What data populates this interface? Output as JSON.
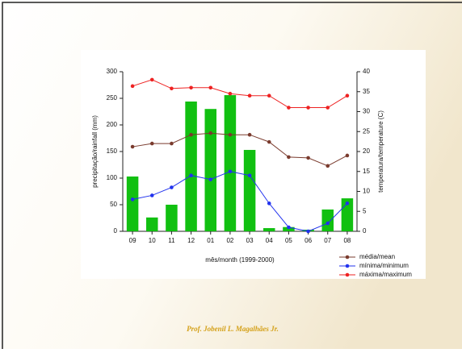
{
  "chart_data": {
    "type": "bar",
    "categories": [
      "09",
      "10",
      "11",
      "12",
      "01",
      "02",
      "03",
      "04",
      "05",
      "06",
      "07",
      "08"
    ],
    "x_label": "mês/month (1999-2000)",
    "y_label": "precipitação/rainfall (mm)",
    "y2_label": "temperatura/temperature (C)",
    "ylim": [
      0,
      300
    ],
    "yticks": [
      0,
      50,
      100,
      150,
      200,
      250,
      300
    ],
    "y2lim": [
      0,
      40
    ],
    "y2ticks": [
      0,
      5,
      10,
      15,
      20,
      25,
      30,
      35,
      40
    ],
    "series": [
      {
        "name": "precipitação",
        "type": "bar",
        "color": "#11c011",
        "values": [
          103,
          26,
          50,
          244,
          230,
          256,
          153,
          6,
          8,
          3,
          41,
          62
        ]
      },
      {
        "name": "média/mean",
        "type": "line",
        "axis": "y2",
        "color": "#7a3b2e",
        "values": [
          21.2,
          22,
          22,
          24.2,
          24.6,
          24.2,
          24.2,
          22.4,
          18.6,
          18.4,
          16.4,
          19
        ]
      },
      {
        "name": "mínima/minimum",
        "type": "line",
        "axis": "y2",
        "color": "#2233ee",
        "values": [
          8,
          9,
          11,
          14,
          13,
          15,
          14,
          7,
          1,
          0,
          2,
          7
        ]
      },
      {
        "name": "máxima/maximum",
        "type": "line",
        "axis": "y2",
        "color": "#ee2222",
        "values": [
          36.4,
          38,
          35.8,
          36,
          36,
          34.5,
          34,
          34,
          31,
          31,
          31,
          34
        ]
      }
    ]
  },
  "footer": "Prof. Jobenil L. Magalhães Jr."
}
